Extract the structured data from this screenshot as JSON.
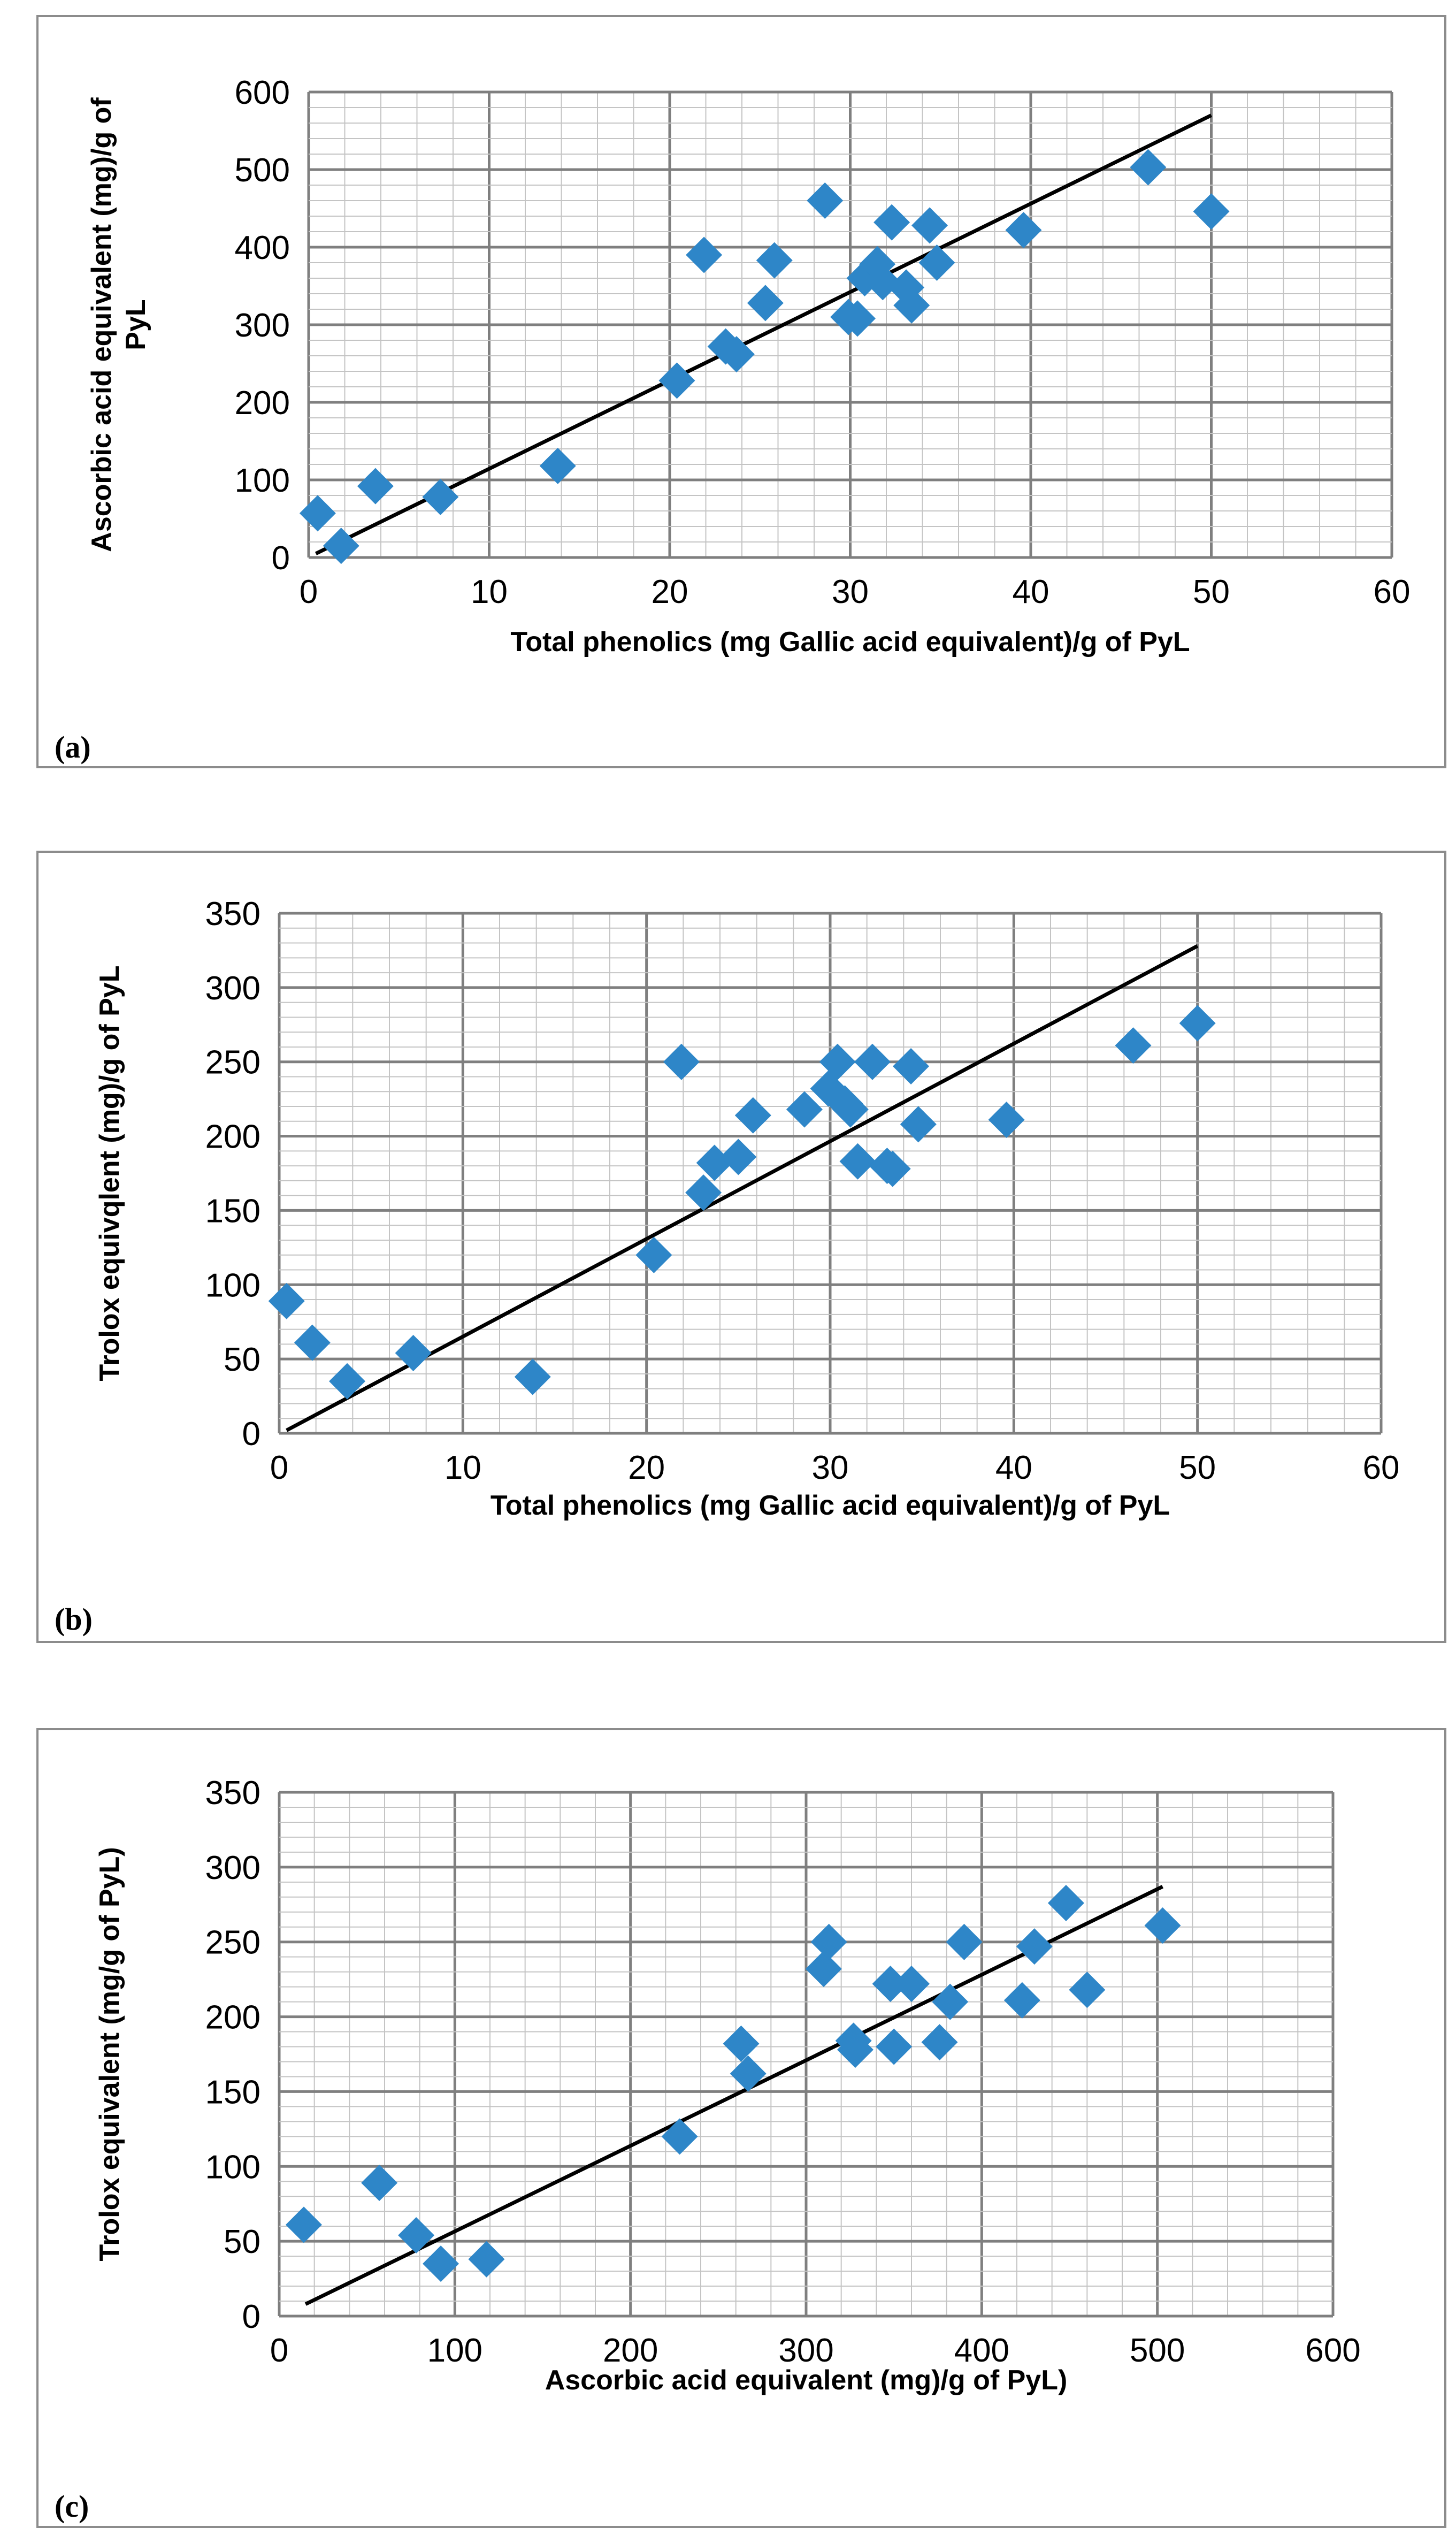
{
  "chart_data": [
    {
      "panel": "(a)",
      "type": "scatter",
      "xlabel": "Total phenolics (mg Gallic acid equivalent)/g of PyL",
      "ylabel": [
        "Ascorbic acid equivalent (mg)/g of",
        "PyL"
      ],
      "xlim": [
        0,
        60
      ],
      "ylim": [
        0,
        600
      ],
      "xticks": [
        "0",
        "10",
        "20",
        "30",
        "40",
        "50",
        "60"
      ],
      "yticks": [
        "0",
        "100",
        "200",
        "300",
        "400",
        "500",
        "600"
      ],
      "trendline": {
        "x": [
          0.4,
          50
        ],
        "y": [
          5,
          570
        ]
      },
      "points": [
        [
          0.5,
          57
        ],
        [
          1.8,
          15
        ],
        [
          3.7,
          92
        ],
        [
          7.3,
          78
        ],
        [
          13.8,
          118
        ],
        [
          20.4,
          228
        ],
        [
          21.9,
          390
        ],
        [
          23.1,
          272
        ],
        [
          23.7,
          262
        ],
        [
          25.3,
          328
        ],
        [
          25.8,
          383
        ],
        [
          28.6,
          460
        ],
        [
          29.9,
          310
        ],
        [
          30.4,
          308
        ],
        [
          30.8,
          360
        ],
        [
          31.5,
          378
        ],
        [
          31.8,
          355
        ],
        [
          32.3,
          432
        ],
        [
          33.1,
          348
        ],
        [
          33.4,
          325
        ],
        [
          34.4,
          428
        ],
        [
          34.8,
          380
        ],
        [
          39.6,
          422
        ],
        [
          46.5,
          503
        ],
        [
          50.0,
          446
        ]
      ],
      "marker_color": "#2e86c8",
      "line_color": "#000000"
    },
    {
      "panel": "(b)",
      "type": "scatter",
      "xlabel": "Total phenolics (mg Gallic acid equivalent)/g of PyL",
      "ylabel": [
        "Trolox equivqlent (mg)/g of PyL"
      ],
      "xlim": [
        0,
        60
      ],
      "ylim": [
        0,
        350
      ],
      "xticks": [
        "0",
        "10",
        "20",
        "30",
        "40",
        "50",
        "60"
      ],
      "yticks": [
        "0",
        "50",
        "100",
        "150",
        "200",
        "250",
        "300",
        "350"
      ],
      "trendline": {
        "x": [
          0.4,
          50
        ],
        "y": [
          2,
          328
        ]
      },
      "points": [
        [
          0.4,
          89
        ],
        [
          1.8,
          61
        ],
        [
          3.7,
          35
        ],
        [
          7.3,
          54
        ],
        [
          13.8,
          38
        ],
        [
          20.4,
          120
        ],
        [
          21.9,
          250
        ],
        [
          23.1,
          162
        ],
        [
          23.7,
          182
        ],
        [
          25.0,
          186
        ],
        [
          25.8,
          214
        ],
        [
          28.6,
          218
        ],
        [
          29.9,
          232
        ],
        [
          30.4,
          250
        ],
        [
          30.8,
          222
        ],
        [
          31.1,
          218
        ],
        [
          31.5,
          183
        ],
        [
          32.3,
          250
        ],
        [
          33.1,
          180
        ],
        [
          33.4,
          178
        ],
        [
          34.4,
          247
        ],
        [
          34.8,
          208
        ],
        [
          39.6,
          211
        ],
        [
          46.5,
          261
        ],
        [
          50.0,
          276
        ]
      ],
      "marker_color": "#2e86c8",
      "line_color": "#000000"
    },
    {
      "panel": "(c)",
      "type": "scatter",
      "xlabel": "Ascorbic acid equivalent (mg)/g of PyL)",
      "ylabel": [
        "Trolox equivalent (mg/g of PyL)"
      ],
      "xlim": [
        0,
        600
      ],
      "ylim": [
        0,
        350
      ],
      "xticks": [
        "0",
        "100",
        "200",
        "300",
        "400",
        "500",
        "600"
      ],
      "yticks": [
        "0",
        "50",
        "100",
        "150",
        "200",
        "250",
        "300",
        "350"
      ],
      "trendline": {
        "x": [
          15,
          503
        ],
        "y": [
          8,
          287
        ]
      },
      "points": [
        [
          14,
          61
        ],
        [
          57,
          89
        ],
        [
          78,
          54
        ],
        [
          92,
          35
        ],
        [
          118,
          38
        ],
        [
          228,
          120
        ],
        [
          263,
          182
        ],
        [
          267,
          162
        ],
        [
          310,
          232
        ],
        [
          313,
          250
        ],
        [
          327,
          184
        ],
        [
          328,
          178
        ],
        [
          348,
          222
        ],
        [
          350,
          180
        ],
        [
          360,
          222
        ],
        [
          376,
          183
        ],
        [
          382,
          210
        ],
        [
          390,
          250
        ],
        [
          423,
          211
        ],
        [
          430,
          247
        ],
        [
          448,
          276
        ],
        [
          460,
          218
        ],
        [
          503,
          261
        ]
      ],
      "marker_color": "#2e86c8",
      "line_color": "#000000"
    }
  ]
}
